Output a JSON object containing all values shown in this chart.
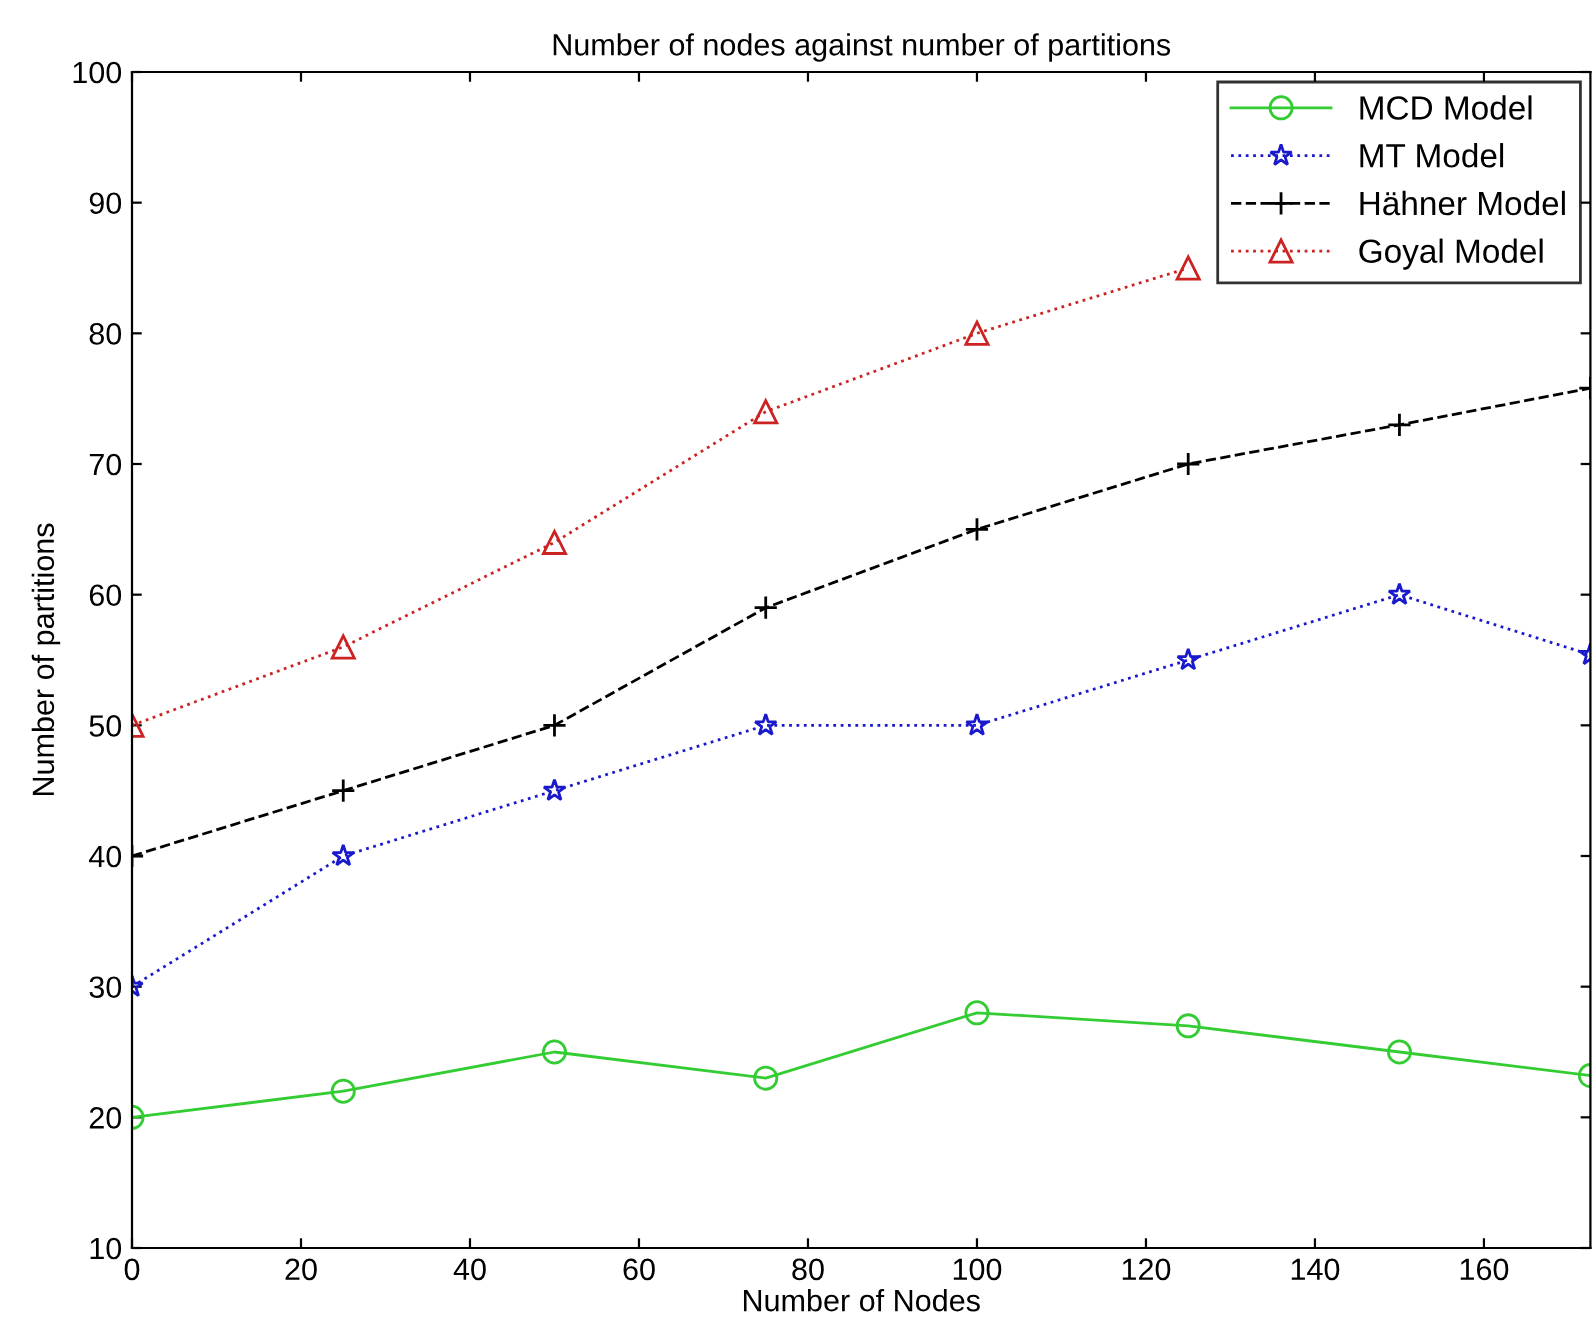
{
  "chart_data": {
    "type": "line",
    "title": "Number of nodes against number of partitions",
    "xlabel": "Number of Nodes",
    "ylabel": "Number of partitions",
    "x": [
      0,
      25,
      50,
      75,
      100,
      125,
      150,
      172.6
    ],
    "series": [
      {
        "name": "MCD Model",
        "color": "#33cc33",
        "marker": "circle",
        "line_style": "solid",
        "values": [
          20,
          22,
          25,
          23,
          28,
          27,
          25,
          23.2
        ]
      },
      {
        "name": "MT Model",
        "color": "#1a1acc",
        "marker": "star",
        "line_style": "dotted",
        "values": [
          30,
          40,
          45,
          50,
          50,
          55,
          60,
          55.4
        ]
      },
      {
        "name": "Hähner Model",
        "color": "#000000",
        "marker": "cross",
        "line_style": "dashed",
        "values": [
          40,
          45,
          50,
          59,
          65,
          70,
          73,
          75.8
        ]
      },
      {
        "name": "Goyal Model",
        "color": "#cc2222",
        "marker": "triangle",
        "line_style": "dotted",
        "values": [
          50,
          56,
          64,
          74,
          80,
          85,
          null,
          null
        ]
      }
    ],
    "xlim": [
      0,
      172.6
    ],
    "xticks": [
      0,
      20,
      40,
      60,
      80,
      100,
      120,
      140,
      160
    ],
    "ylim": [
      10,
      100
    ],
    "yticks": [
      10,
      20,
      30,
      40,
      50,
      60,
      70,
      80,
      90,
      100
    ],
    "grid": false,
    "legend": "top right"
  }
}
